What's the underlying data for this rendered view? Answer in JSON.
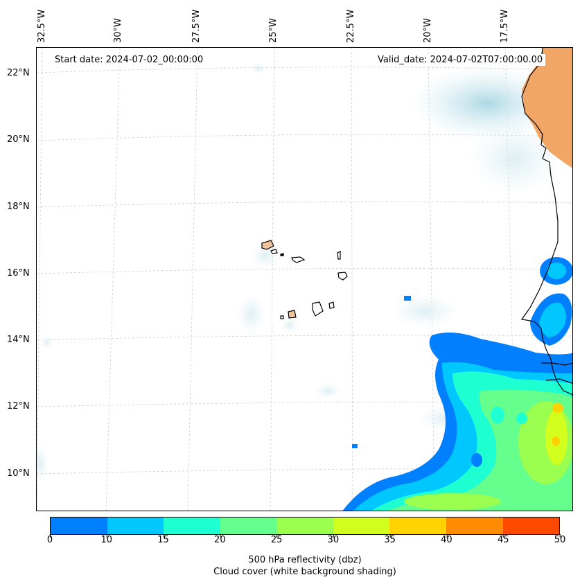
{
  "map": {
    "start_date": "Start date: 2024-07-02_00:00:00",
    "valid_date": "Valid_date: 2024-07-02T07:00:00.00",
    "lon_labels": [
      "32.5°W",
      "30°W",
      "27.5°W",
      "25°W",
      "22.5°W",
      "20°W",
      "17.5°W"
    ],
    "lat_labels": [
      "22°N",
      "20°N",
      "18°N",
      "16°N",
      "14°N",
      "12°N",
      "10°N"
    ]
  },
  "colorbar": {
    "colors": [
      "#0080ff",
      "#00c8ff",
      "#1effd2",
      "#64ff8c",
      "#9bff50",
      "#d2ff1e",
      "#ffd200",
      "#ff8c00",
      "#ff4b00"
    ],
    "ticks": [
      "0",
      "10",
      "15",
      "20",
      "25",
      "30",
      "35",
      "40",
      "45",
      "50"
    ],
    "label": "500 hPa reflectivity (dbz)",
    "sublabel": "Cloud cover (white background shading)"
  }
}
